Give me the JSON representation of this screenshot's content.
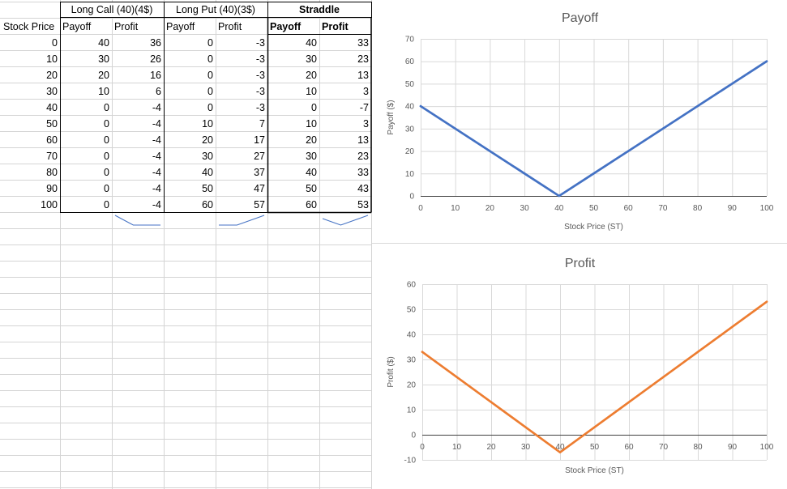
{
  "table": {
    "group_headers": {
      "long_call": "Long Call (40)(4$)",
      "long_put": "Long Put (40)(3$)",
      "straddle": "Straddle"
    },
    "column_headers": [
      "Stock Price",
      "Payoff",
      "Profit",
      "Payoff",
      "Profit",
      "Payoff",
      "Profit"
    ],
    "rows": [
      [
        0,
        40,
        36,
        0,
        -3,
        40,
        33
      ],
      [
        10,
        30,
        26,
        0,
        -3,
        30,
        23
      ],
      [
        20,
        20,
        16,
        0,
        -3,
        20,
        13
      ],
      [
        30,
        10,
        6,
        0,
        -3,
        10,
        3
      ],
      [
        40,
        0,
        -4,
        0,
        -3,
        0,
        -7
      ],
      [
        50,
        0,
        -4,
        10,
        7,
        10,
        3
      ],
      [
        60,
        0,
        -4,
        20,
        17,
        20,
        13
      ],
      [
        70,
        0,
        -4,
        30,
        27,
        30,
        23
      ],
      [
        80,
        0,
        -4,
        40,
        37,
        40,
        33
      ],
      [
        90,
        0,
        -4,
        50,
        47,
        50,
        43
      ],
      [
        100,
        0,
        -4,
        60,
        57,
        60,
        53
      ]
    ],
    "sparkline_color": "#4472c4"
  },
  "chart_data": [
    {
      "type": "line",
      "title": "Payoff",
      "xlabel": "Stock Price (ST)",
      "ylabel": "Payoff ($)",
      "x": [
        0,
        10,
        20,
        30,
        40,
        50,
        60,
        70,
        80,
        90,
        100
      ],
      "series": [
        {
          "values": [
            40,
            30,
            20,
            10,
            0,
            10,
            20,
            30,
            40,
            50,
            60
          ],
          "color": "#4472c4"
        }
      ],
      "xlim": [
        0,
        100
      ],
      "ylim": [
        0,
        70
      ],
      "xticks": [
        0,
        10,
        20,
        30,
        40,
        50,
        60,
        70,
        80,
        90,
        100
      ],
      "yticks": [
        0,
        10,
        20,
        30,
        40,
        50,
        60,
        70
      ],
      "grid": true,
      "legend": "none"
    },
    {
      "type": "line",
      "title": "Profit",
      "xlabel": "Stock Price (ST)",
      "ylabel": "Profit ($)",
      "x": [
        0,
        10,
        20,
        30,
        40,
        50,
        60,
        70,
        80,
        90,
        100
      ],
      "series": [
        {
          "values": [
            33,
            23,
            13,
            3,
            -7,
            3,
            13,
            23,
            33,
            43,
            53
          ],
          "color": "#ed7d31"
        }
      ],
      "xlim": [
        0,
        100
      ],
      "ylim": [
        -10,
        60
      ],
      "xticks": [
        0,
        10,
        20,
        30,
        40,
        50,
        60,
        70,
        80,
        90,
        100
      ],
      "yticks": [
        -10,
        0,
        10,
        20,
        30,
        40,
        50,
        60
      ],
      "grid": true,
      "legend": "none"
    }
  ]
}
